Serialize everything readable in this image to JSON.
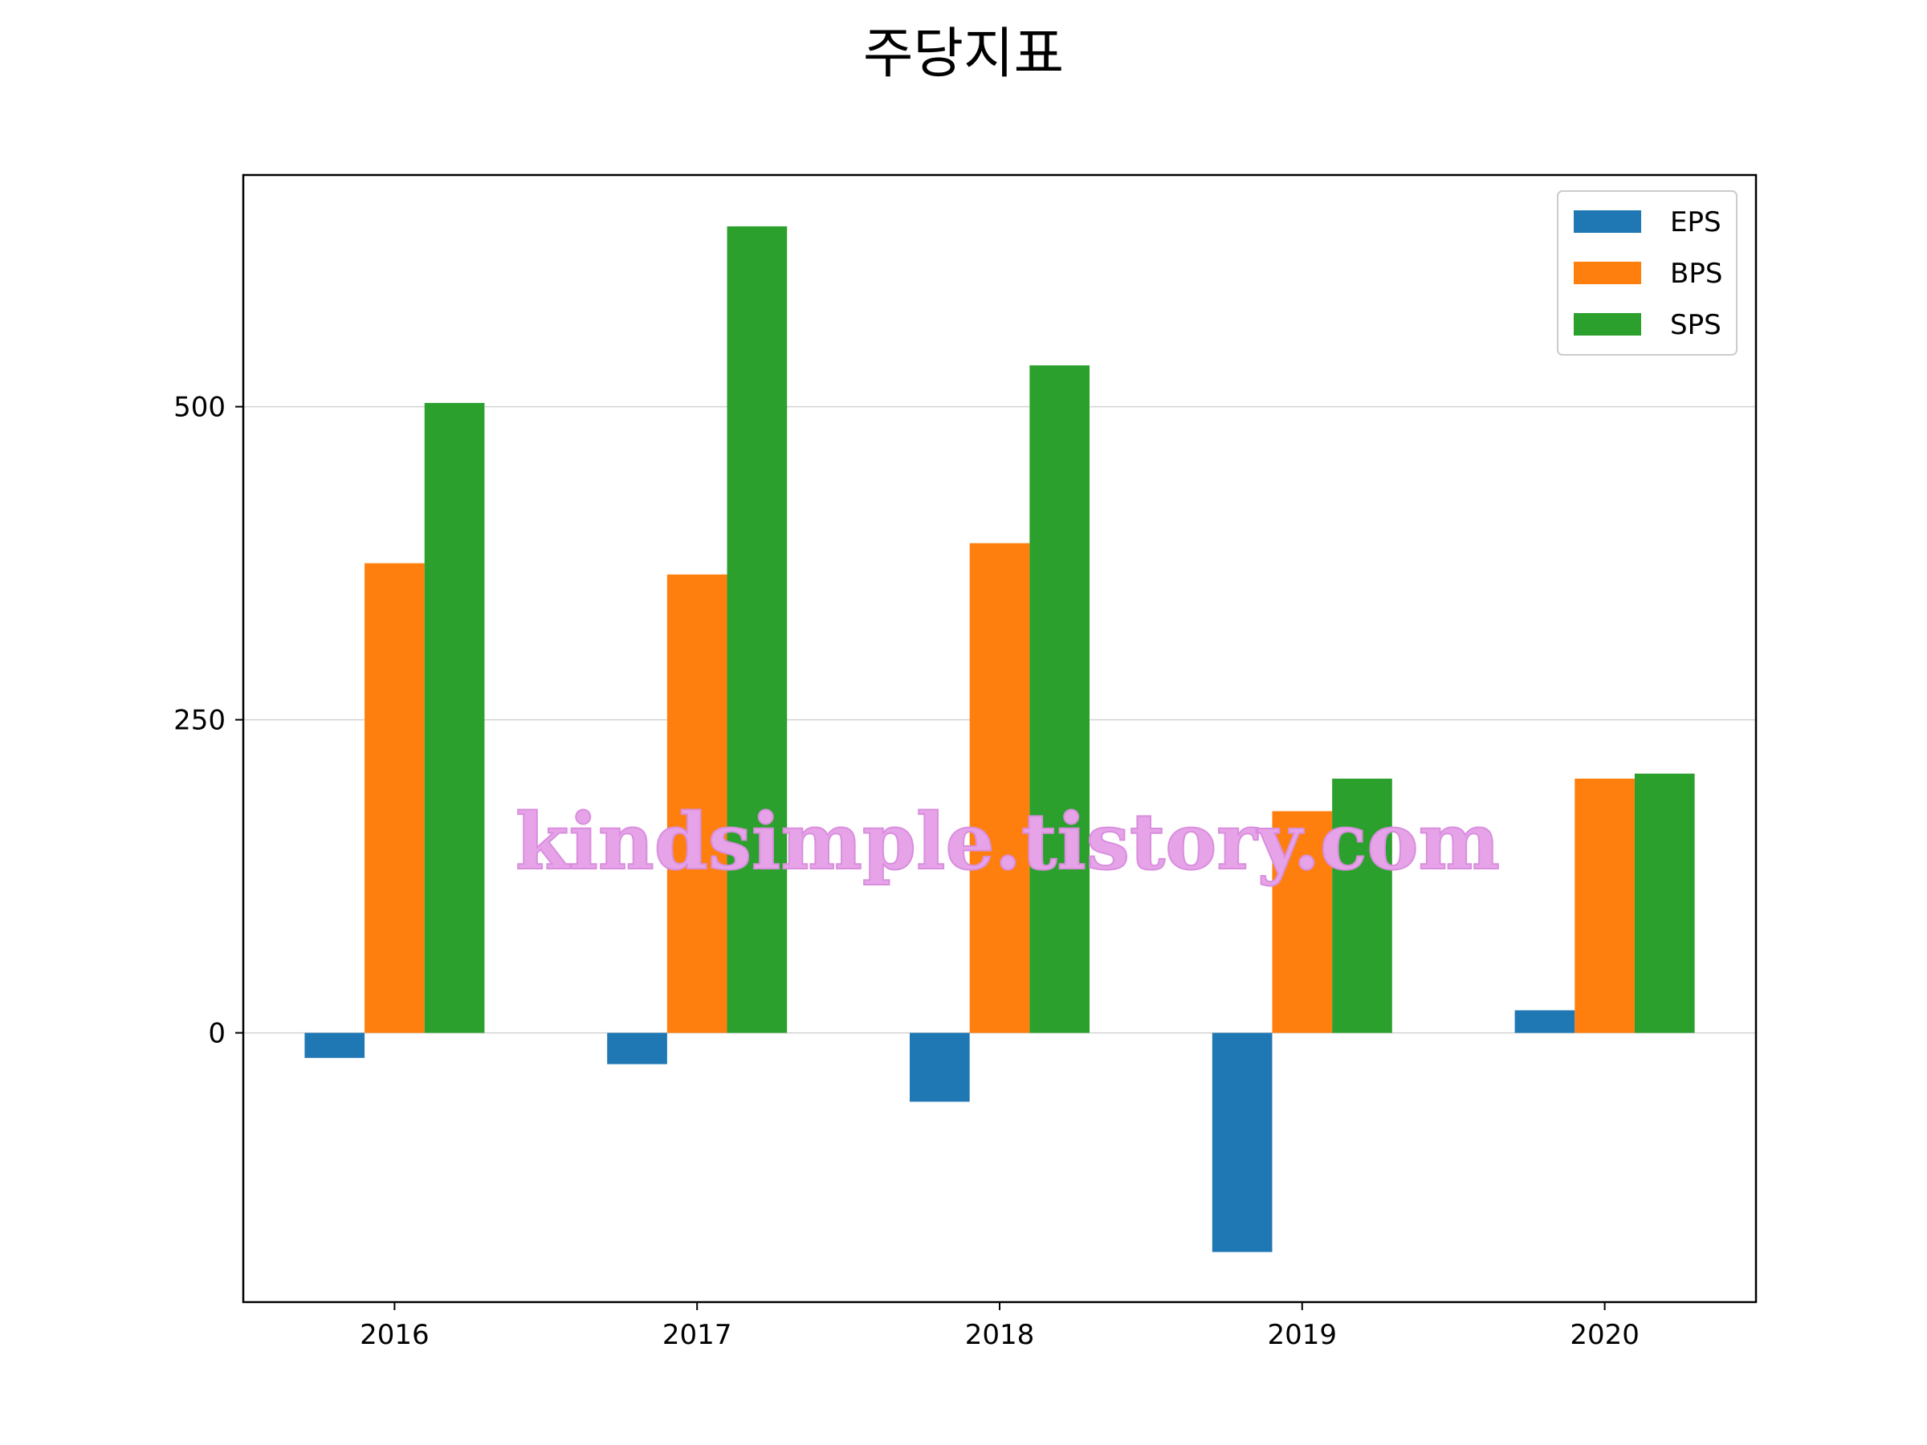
{
  "chart_data": {
    "type": "bar",
    "title": "주당지표",
    "categories": [
      "2016",
      "2017",
      "2018",
      "2019",
      "2020"
    ],
    "series": [
      {
        "name": "EPS",
        "color": "#1f77b4",
        "values": [
          -20,
          -25,
          -55,
          -175,
          18
        ]
      },
      {
        "name": "BPS",
        "color": "#ff7f0e",
        "values": [
          375,
          366,
          391,
          177,
          203
        ]
      },
      {
        "name": "SPS",
        "color": "#2ca02c",
        "values": [
          503,
          644,
          533,
          203,
          207
        ]
      }
    ],
    "yticks": [
      0,
      250,
      500
    ],
    "ytick_labels": [
      "0",
      "250",
      "500"
    ],
    "ylim": [
      -215,
      685
    ],
    "xlabel": "",
    "ylabel": "",
    "grid": "y",
    "legend": "top-right"
  },
  "watermark": "kindsimple.tistory.com"
}
